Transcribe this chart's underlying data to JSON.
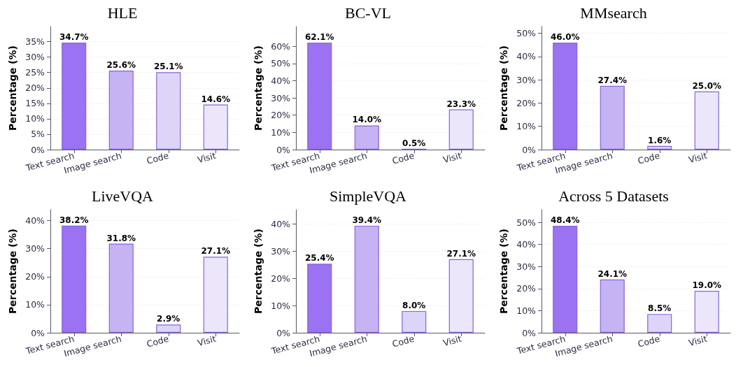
{
  "chart_data": [
    {
      "type": "bar",
      "title": "HLE",
      "ylabel": "Percentage (%)",
      "categories": [
        "Text search",
        "Image search",
        "Code",
        "Visit"
      ],
      "values": [
        34.7,
        25.6,
        25.1,
        14.6
      ],
      "colors": [
        "#9b72f2",
        "#c5b3f3",
        "#ddd5f8",
        "#ece6fb"
      ],
      "value_labels": [
        "34.7%",
        "25.6%",
        "25.1%",
        "14.6%"
      ],
      "ylim": [
        0,
        39.9
      ],
      "yticks": [
        {
          "value": 0,
          "label": "0%"
        },
        {
          "value": 5,
          "label": "5%"
        },
        {
          "value": 10,
          "label": "10%"
        },
        {
          "value": 15,
          "label": "15%"
        },
        {
          "value": 20,
          "label": "20%"
        },
        {
          "value": 25,
          "label": "25%"
        },
        {
          "value": 30,
          "label": "30%"
        },
        {
          "value": 35,
          "label": "35%"
        }
      ],
      "grid": "y"
    },
    {
      "type": "bar",
      "title": "BC-VL",
      "ylabel": "Percentage (%)",
      "categories": [
        "Text search",
        "Image search",
        "Code",
        "Visit"
      ],
      "values": [
        62.1,
        14.0,
        0.5,
        23.3
      ],
      "colors": [
        "#9b72f2",
        "#c5b3f3",
        "#ddd5f8",
        "#ece6fb"
      ],
      "value_labels": [
        "62.1%",
        "14.0%",
        "0.5%",
        "23.3%"
      ],
      "ylim": [
        0,
        71.4
      ],
      "yticks": [
        {
          "value": 0,
          "label": "0%"
        },
        {
          "value": 10,
          "label": "10%"
        },
        {
          "value": 20,
          "label": "20%"
        },
        {
          "value": 30,
          "label": "30%"
        },
        {
          "value": 40,
          "label": "40%"
        },
        {
          "value": 50,
          "label": "50%"
        },
        {
          "value": 60,
          "label": "60%"
        }
      ],
      "grid": "y"
    },
    {
      "type": "bar",
      "title": "MMsearch",
      "ylabel": "Percentage (%)",
      "categories": [
        "Text search",
        "Image search",
        "Code",
        "Visit"
      ],
      "values": [
        46.0,
        27.4,
        1.6,
        25.0
      ],
      "colors": [
        "#9b72f2",
        "#c5b3f3",
        "#ddd5f8",
        "#ece6fb"
      ],
      "value_labels": [
        "46.0%",
        "27.4%",
        "1.6%",
        "25.0%"
      ],
      "ylim": [
        0,
        52.9
      ],
      "yticks": [
        {
          "value": 0,
          "label": "0%"
        },
        {
          "value": 10,
          "label": "10%"
        },
        {
          "value": 20,
          "label": "20%"
        },
        {
          "value": 30,
          "label": "30%"
        },
        {
          "value": 40,
          "label": "40%"
        },
        {
          "value": 50,
          "label": "50%"
        }
      ],
      "grid": "y"
    },
    {
      "type": "bar",
      "title": "LiveVQA",
      "ylabel": "Percentage (%)",
      "categories": [
        "Text search",
        "Image search",
        "Code",
        "Visit"
      ],
      "values": [
        38.2,
        31.8,
        2.9,
        27.1
      ],
      "colors": [
        "#9b72f2",
        "#c5b3f3",
        "#ddd5f8",
        "#ece6fb"
      ],
      "value_labels": [
        "38.2%",
        "31.8%",
        "2.9%",
        "27.1%"
      ],
      "ylim": [
        0,
        43.9
      ],
      "yticks": [
        {
          "value": 0,
          "label": "0%"
        },
        {
          "value": 10,
          "label": "10%"
        },
        {
          "value": 20,
          "label": "20%"
        },
        {
          "value": 30,
          "label": "30%"
        },
        {
          "value": 40,
          "label": "40%"
        }
      ],
      "grid": "y"
    },
    {
      "type": "bar",
      "title": "SimpleVQA",
      "ylabel": "Percentage (%)",
      "categories": [
        "Text search",
        "Image search",
        "Code",
        "Visit"
      ],
      "values": [
        25.4,
        39.4,
        8.0,
        27.1
      ],
      "colors": [
        "#9b72f2",
        "#c5b3f3",
        "#ddd5f8",
        "#ece6fb"
      ],
      "value_labels": [
        "25.4%",
        "39.4%",
        "8.0%",
        "27.1%"
      ],
      "ylim": [
        0,
        45.3
      ],
      "yticks": [
        {
          "value": 0,
          "label": "0%"
        },
        {
          "value": 10,
          "label": "10%"
        },
        {
          "value": 20,
          "label": "20%"
        },
        {
          "value": 30,
          "label": "30%"
        },
        {
          "value": 40,
          "label": "40%"
        }
      ],
      "grid": "y"
    },
    {
      "type": "bar",
      "title": "Across 5 Datasets",
      "ylabel": "Percentage (%)",
      "categories": [
        "Text search",
        "Image search",
        "Code",
        "Visit"
      ],
      "values": [
        48.4,
        24.1,
        8.5,
        19.0
      ],
      "colors": [
        "#9b72f2",
        "#c5b3f3",
        "#ddd5f8",
        "#ece6fb"
      ],
      "value_labels": [
        "48.4%",
        "24.1%",
        "8.5%",
        "19.0%"
      ],
      "ylim": [
        0,
        55.7
      ],
      "yticks": [
        {
          "value": 0,
          "label": "0%"
        },
        {
          "value": 10,
          "label": "10%"
        },
        {
          "value": 20,
          "label": "20%"
        },
        {
          "value": 30,
          "label": "30%"
        },
        {
          "value": 40,
          "label": "40%"
        },
        {
          "value": 50,
          "label": "50%"
        }
      ],
      "grid": "y"
    }
  ]
}
